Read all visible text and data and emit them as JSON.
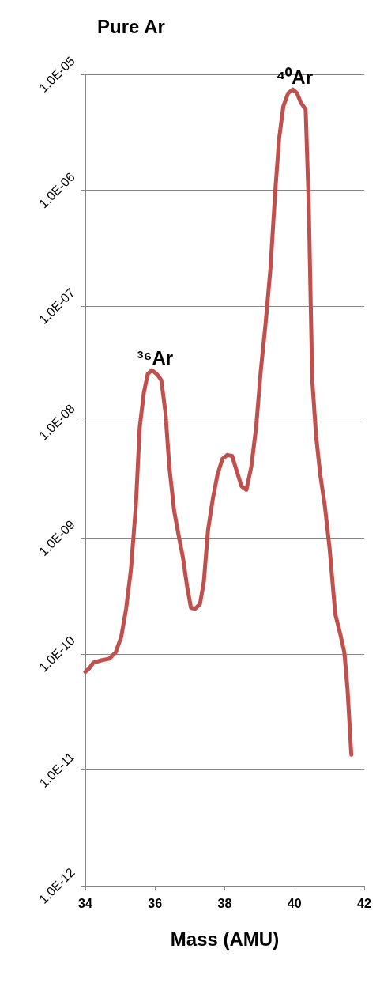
{
  "chart_data": {
    "type": "line",
    "title": "Pure Ar",
    "xlabel": "Mass (AMU)",
    "x": [
      34,
      34.11,
      34.23,
      34.46,
      34.69,
      34.87,
      35.03,
      35.17,
      35.31,
      35.45,
      35.56,
      35.68,
      35.79,
      35.91,
      36.05,
      36.18,
      36.3,
      36.41,
      36.55,
      36.69,
      36.8,
      36.92,
      37.03,
      37.15,
      37.29,
      37.4,
      37.52,
      37.66,
      37.79,
      37.93,
      38.07,
      38.21,
      38.34,
      38.48,
      38.62,
      38.76,
      38.9,
      39.03,
      39.17,
      39.31,
      39.45,
      39.56,
      39.68,
      39.82,
      39.95,
      40.07,
      40.18,
      40.32,
      40.41,
      40.51,
      40.62,
      40.74,
      40.87,
      41.01,
      41.17,
      41.31,
      41.43,
      41.52,
      41.63
    ],
    "series": [
      {
        "color": "#c0504d",
        "values": [
          7e-11,
          7.5e-11,
          8.4e-11,
          8.8e-11,
          9.1e-11,
          1.03e-10,
          1.4e-10,
          2.45e-10,
          5.4e-10,
          1.9e-09,
          9e-09,
          1.8e-08,
          2.6e-08,
          2.8e-08,
          2.6e-08,
          2.3e-08,
          1.2e-08,
          4.1e-09,
          1.7e-09,
          1e-09,
          6.8e-10,
          3.8e-10,
          2.5e-10,
          2.45e-10,
          2.7e-10,
          4.2e-10,
          1.17e-09,
          2.2e-09,
          3.5e-09,
          4.8e-09,
          5.2e-09,
          5.1e-09,
          3.8e-09,
          2.8e-09,
          2.6e-09,
          4.1e-09,
          9e-09,
          2.7e-08,
          7e-08,
          2.1e-07,
          1e-06,
          2.8e-06,
          5.3e-06,
          6.9e-06,
          7.4e-06,
          6.9e-06,
          5.7e-06,
          5e-06,
          7.3e-07,
          2.3e-08,
          7.6e-09,
          3.5e-09,
          1.9e-09,
          8e-10,
          2.2e-10,
          1.5e-10,
          1.03e-10,
          5e-11,
          1.35e-11
        ]
      }
    ],
    "xlim": [
      34,
      42
    ],
    "xticks": [
      34,
      36,
      38,
      40,
      42
    ],
    "ylim": [
      1e-12,
      1e-05
    ],
    "yticks": [
      {
        "value": 1e-12,
        "label": "1.0E-12"
      },
      {
        "value": 1e-11,
        "label": "1.0E-11"
      },
      {
        "value": 1e-10,
        "label": "1.0E-10"
      },
      {
        "value": 1e-09,
        "label": "1.0E-09"
      },
      {
        "value": 1e-08,
        "label": "1.0E-08"
      },
      {
        "value": 1e-07,
        "label": "1.0E-07"
      },
      {
        "value": 1e-06,
        "label": "1.0E-06"
      },
      {
        "value": 1e-05,
        "label": "1.0E-05"
      }
    ],
    "log": true,
    "grid": "y",
    "marker": "none",
    "line_style": "solid",
    "annotations": [
      {
        "text": "³⁶Ar",
        "x": 36,
        "y": 2.8e-08
      },
      {
        "text": "⁴⁰Ar",
        "x": 40,
        "y": 7.4e-06
      }
    ]
  }
}
